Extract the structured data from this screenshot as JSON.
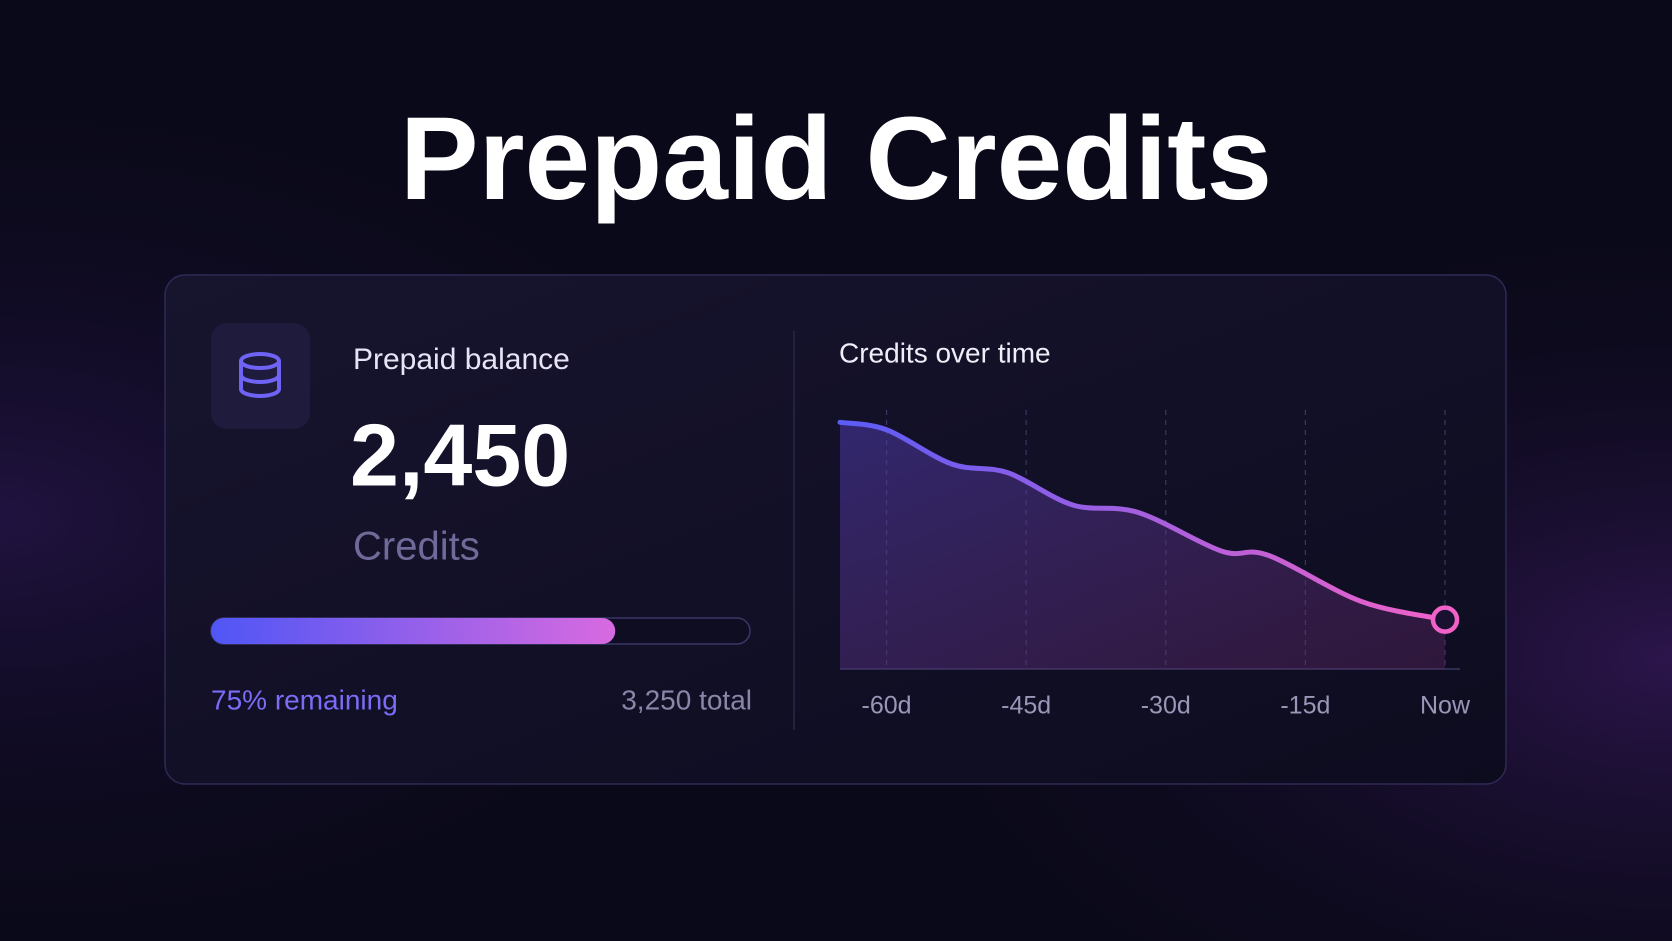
{
  "title": "Prepaid Credits",
  "balance": {
    "label": "Prepaid balance",
    "amount": "2,450",
    "unit": "Credits",
    "progress": {
      "value": 75,
      "label": "75% remaining",
      "lim": [
        0,
        100
      ],
      "colors": [
        "#4f56f5",
        "#d86ae0"
      ]
    },
    "total": "3,250 total"
  },
  "chart_data": {
    "type": "area",
    "title": "Credits over time",
    "x": [
      -65,
      -60,
      -53,
      -47,
      -40,
      -33,
      -24,
      -19,
      -9,
      0
    ],
    "values": [
      3250,
      3220,
      3081,
      3046,
      2915,
      2885,
      2728,
      2711,
      2524,
      2450
    ],
    "xlim": [
      -65,
      0
    ],
    "ylim": [
      2250,
      3300
    ],
    "xticks": [
      {
        "value": -60,
        "label": "-60d"
      },
      {
        "value": -45,
        "label": "-45d"
      },
      {
        "value": -30,
        "label": "-30d"
      },
      {
        "value": -15,
        "label": "-15d"
      },
      {
        "value": 0,
        "label": "Now"
      }
    ],
    "grid": true,
    "colors": [
      "#5b5cf6",
      "#f062c8"
    ]
  }
}
